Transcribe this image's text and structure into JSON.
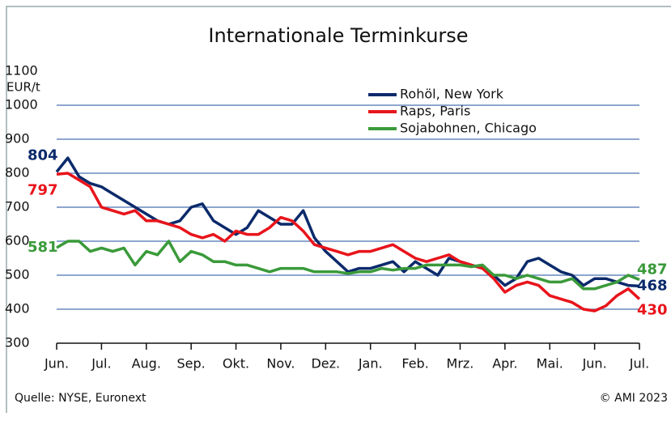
{
  "chart_data": {
    "type": "line",
    "title": "Internationale Terminkurse",
    "y_label": "EUR/t",
    "source": "Quelle: NYSE, Euronext",
    "copyright": "© AMI 2023",
    "categories": [
      "Jun.",
      null,
      null,
      null,
      "Jul.",
      null,
      null,
      null,
      "Aug.",
      null,
      null,
      null,
      "Sep.",
      null,
      null,
      null,
      "Okt.",
      null,
      null,
      null,
      "Nov.",
      null,
      null,
      null,
      "Dez.",
      null,
      null,
      null,
      "Jan.",
      null,
      null,
      null,
      "Feb.",
      null,
      null,
      null,
      "Mrz.",
      null,
      null,
      null,
      "Apr.",
      null,
      null,
      null,
      "Mai.",
      null,
      null,
      null,
      "Jun.",
      null,
      null,
      null,
      "Jul."
    ],
    "series": [
      {
        "name": "Rohöl, New York",
        "color": "#0b2a6b",
        "values": [
          804,
          845,
          790,
          770,
          760,
          740,
          720,
          700,
          680,
          660,
          650,
          660,
          700,
          710,
          660,
          640,
          620,
          640,
          690,
          670,
          650,
          650,
          690,
          610,
          570,
          540,
          510,
          520,
          520,
          530,
          540,
          510,
          540,
          520,
          500,
          550,
          540,
          530,
          520,
          500,
          470,
          490,
          540,
          550,
          530,
          510,
          500,
          470,
          490,
          490,
          480,
          470,
          468
        ]
      },
      {
        "name": "Raps, Paris",
        "color": "#e8141b",
        "values": [
          797,
          800,
          780,
          760,
          700,
          690,
          680,
          690,
          660,
          660,
          650,
          640,
          620,
          610,
          620,
          600,
          630,
          620,
          620,
          640,
          670,
          660,
          630,
          590,
          580,
          570,
          560,
          570,
          570,
          580,
          590,
          570,
          550,
          540,
          550,
          560,
          540,
          530,
          520,
          490,
          450,
          470,
          480,
          470,
          440,
          430,
          420,
          400,
          395,
          410,
          440,
          460,
          430
        ]
      },
      {
        "name": "Sojabohnen, Chicago",
        "color": "#3a9a3a",
        "values": [
          581,
          600,
          600,
          570,
          580,
          570,
          580,
          530,
          570,
          560,
          600,
          540,
          570,
          560,
          540,
          540,
          530,
          530,
          520,
          510,
          520,
          520,
          520,
          510,
          510,
          510,
          505,
          510,
          510,
          520,
          515,
          520,
          520,
          530,
          530,
          530,
          530,
          525,
          530,
          500,
          500,
          490,
          500,
          490,
          480,
          480,
          490,
          460,
          460,
          470,
          480,
          500,
          487
        ]
      }
    ],
    "ylim": [
      300,
      1100
    ],
    "yticks": [
      300,
      400,
      500,
      600,
      700,
      800,
      900,
      1000,
      1100
    ],
    "grid": true,
    "legend": "top-right"
  }
}
